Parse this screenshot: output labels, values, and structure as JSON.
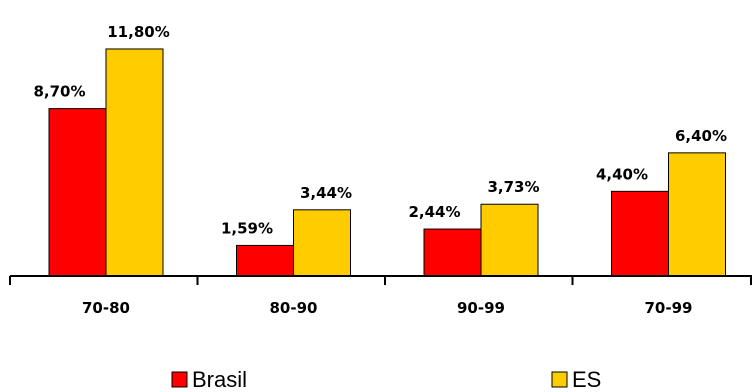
{
  "chart_data": {
    "type": "bar",
    "categories": [
      "70-80",
      "80-90",
      "90-99",
      "70-99"
    ],
    "series": [
      {
        "name": "Brasil",
        "values": [
          8.7,
          1.59,
          2.44,
          4.4
        ],
        "labels": [
          "8,70%",
          "1,59%",
          "2,44%",
          "4,40%"
        ],
        "color": "#FF0000"
      },
      {
        "name": "ES",
        "values": [
          11.8,
          3.44,
          3.73,
          6.4
        ],
        "labels": [
          "11,80%",
          "3,44%",
          "3,73%",
          "6,40%"
        ],
        "color": "#FFCC00"
      }
    ],
    "ylim": [
      0,
      12
    ],
    "grid": false,
    "legend": "bottom",
    "bar_outline": "#000000"
  }
}
